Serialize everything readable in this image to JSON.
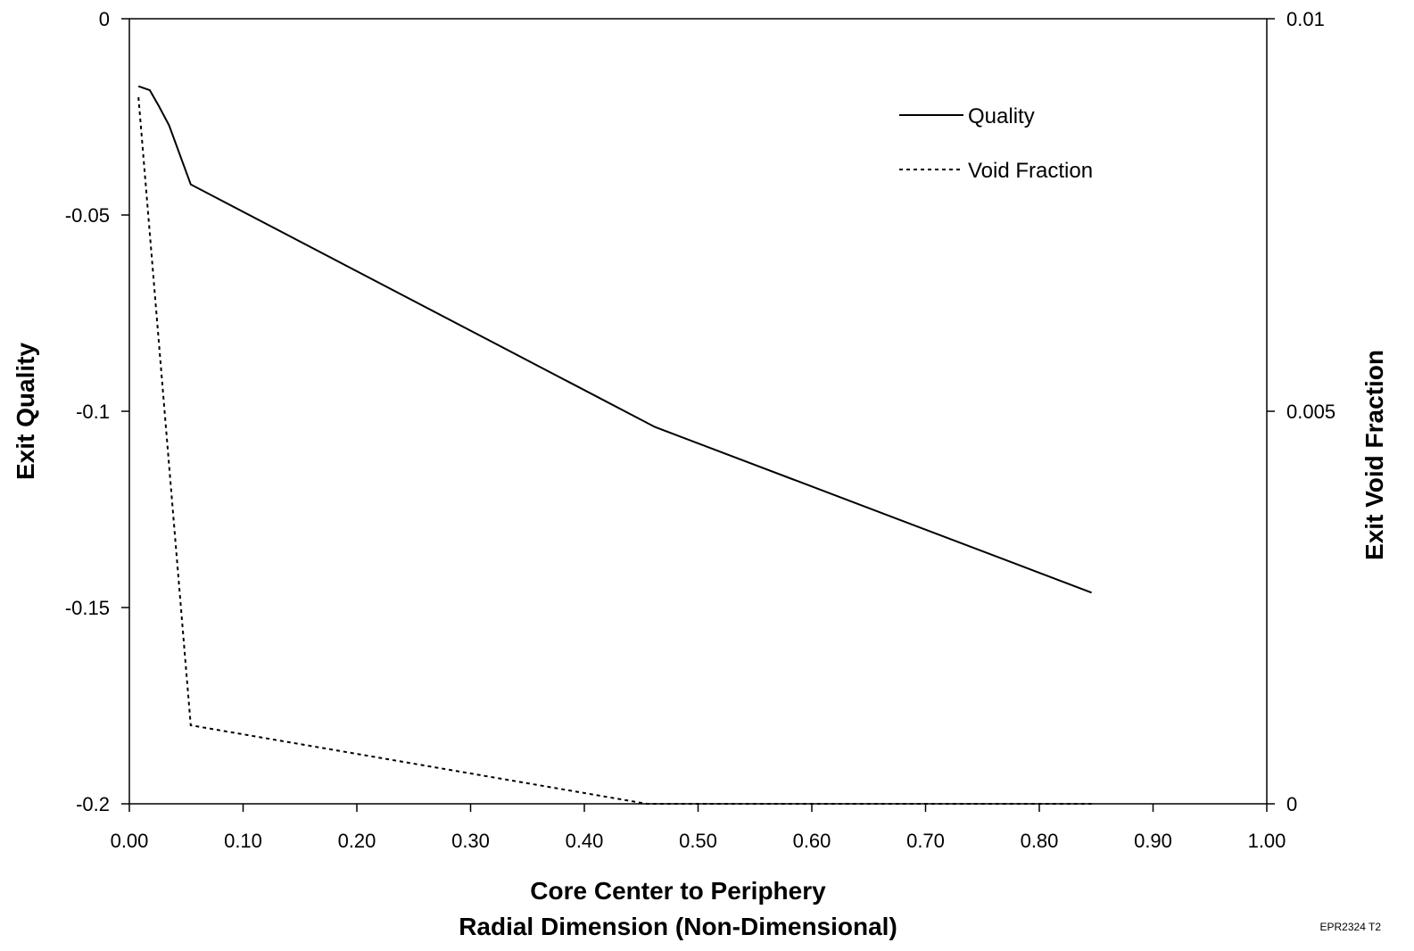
{
  "chart_data": {
    "type": "line",
    "title": "",
    "xlabel_lines": [
      "Core Center to Periphery",
      "Radial Dimension (Non-Dimensional)"
    ],
    "ylabel_left": "Exit Quality",
    "ylabel_right": "Exit Void Fraction",
    "xlim": [
      0.0,
      1.0
    ],
    "ylim_left": [
      -0.2,
      0.0
    ],
    "ylim_right": [
      0.0,
      0.01
    ],
    "x_ticks": [
      "0.00",
      "0.10",
      "0.20",
      "0.30",
      "0.40",
      "0.50",
      "0.60",
      "0.70",
      "0.80",
      "0.90",
      "1.00"
    ],
    "y_left_ticks": [
      "0",
      "-0.05",
      "-0.1",
      "-0.15",
      "-0.2"
    ],
    "y_right_ticks": [
      "0.01",
      "0.005",
      "0"
    ],
    "grid": false,
    "legend_position": "top-right",
    "series": [
      {
        "name": "Quality",
        "axis": "left",
        "style": "solid",
        "x": [
          0.008,
          0.018,
          0.026,
          0.035,
          0.054,
          0.462,
          0.846
        ],
        "y": [
          -0.0172,
          -0.0182,
          -0.0223,
          -0.0272,
          -0.0422,
          -0.104,
          -0.1462
        ]
      },
      {
        "name": "Void Fraction",
        "axis": "right",
        "style": "dotted",
        "x": [
          0.008,
          0.054,
          0.455,
          0.846
        ],
        "y": [
          0.009,
          0.001,
          0.0,
          0.0
        ]
      }
    ]
  },
  "figure_code": "EPR2324 T2"
}
